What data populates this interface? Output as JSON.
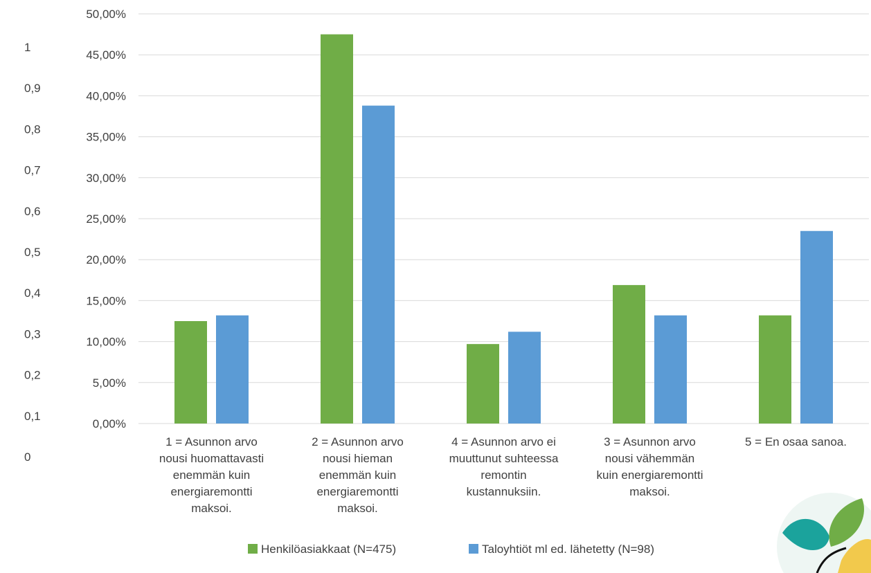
{
  "chart_data": {
    "type": "bar",
    "categories": [
      "1 = Asunnon arvo nousi huomattavasti enemmän kuin energiaremontti maksoi.",
      "2 = Asunnon arvo nousi hieman enemmän kuin energiaremontti maksoi.",
      "4 = Asunnon arvo ei muuttunut suhteessa remontin kustannuksiin.",
      "3 = Asunnon arvo nousi vähemmän kuin energiaremontti maksoi.",
      "5 = En osaa sanoa."
    ],
    "category_lines": [
      [
        "1 = Asunnon arvo",
        "nousi huomattavasti",
        "enemmän kuin",
        "energiaremontti",
        "maksoi."
      ],
      [
        "2 = Asunnon arvo",
        "nousi hieman",
        "enemmän kuin",
        "energiaremontti",
        "maksoi."
      ],
      [
        "4 = Asunnon arvo ei",
        "muuttunut suhteessa",
        "remontin",
        "kustannuksiin."
      ],
      [
        "3 = Asunnon arvo",
        "nousi vähemmän",
        "kuin energiaremontti",
        "maksoi."
      ],
      [
        "5 = En osaa sanoa."
      ]
    ],
    "series": [
      {
        "name": "Henkilöasiakkaat (N=475)",
        "color": "#70ad47",
        "values": [
          12.5,
          47.5,
          9.7,
          16.9,
          13.2
        ]
      },
      {
        "name": "Taloyhtiöt ml ed. lähetetty (N=98)",
        "color": "#5b9bd5",
        "values": [
          13.2,
          38.8,
          11.2,
          13.2,
          23.5
        ]
      }
    ],
    "y_ticks": [
      "0,00%",
      "5,00%",
      "10,00%",
      "15,00%",
      "20,00%",
      "25,00%",
      "30,00%",
      "35,00%",
      "40,00%",
      "45,00%",
      "50,00%"
    ],
    "ylim": [
      0,
      50
    ],
    "secondary_y_ticks": [
      "0",
      "0,1",
      "0,2",
      "0,3",
      "0,4",
      "0,5",
      "0,6",
      "0,7",
      "0,8",
      "0,9",
      "1"
    ],
    "grid": true,
    "legend_position": "bottom",
    "gridline_color": "#d9d9d9"
  }
}
